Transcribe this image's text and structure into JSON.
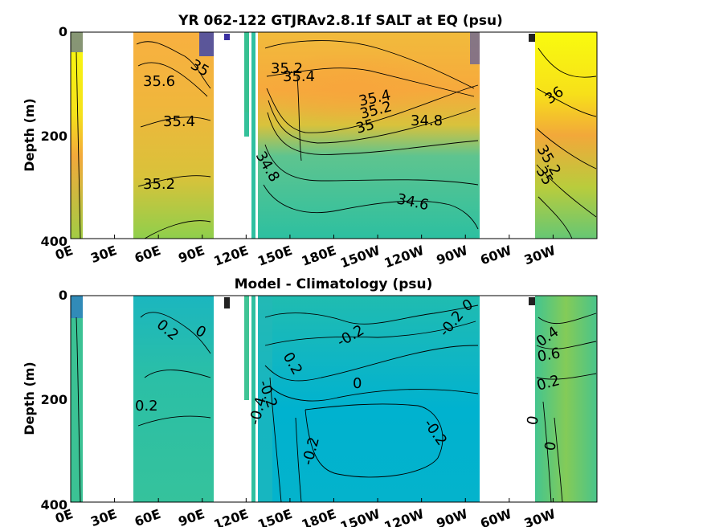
{
  "chart_data": [
    {
      "type": "heatmap",
      "title": "YR 062-122 GTJRAv2.8.1f SALT at EQ (psu)",
      "xlabel": "",
      "ylabel": "Depth (m)",
      "x_ticks": [
        "0E",
        "30E",
        "60E",
        "90E",
        "120E",
        "150E",
        "180E",
        "150W",
        "120W",
        "90W",
        "60W",
        "30W"
      ],
      "y_ticks": [
        "0",
        "200",
        "400"
      ],
      "xlim": [
        0,
        360
      ],
      "ylim": [
        400,
        0
      ],
      "colors": {
        "low": "#2b3fb5",
        "mid_low": "#21b9a8",
        "mid": "#b5cf3a",
        "high": "#f7a93c",
        "max": "#f9fb0e"
      },
      "contour_labels": [
        {
          "text": "35",
          "lon": 50,
          "depth": 55
        },
        {
          "text": "35.6",
          "lon": 40,
          "depth": 95
        },
        {
          "text": "35.4",
          "lon": 50,
          "depth": 170
        },
        {
          "text": "35.2",
          "lon": 40,
          "depth": 290
        },
        {
          "text": "35.2",
          "lon": 142,
          "depth": 60
        },
        {
          "text": "35.4",
          "lon": 147,
          "depth": 85
        },
        {
          "text": "35.4",
          "lon": 207,
          "depth": 130
        },
        {
          "text": "35.2",
          "lon": 207,
          "depth": 150
        },
        {
          "text": "35",
          "lon": 200,
          "depth": 185
        },
        {
          "text": "34.8",
          "lon": 235,
          "depth": 170
        },
        {
          "text": "34.8",
          "lon": 135,
          "depth": 250
        },
        {
          "text": "34.6",
          "lon": 237,
          "depth": 320
        },
        {
          "text": "36",
          "lon": 334,
          "depth": 110
        },
        {
          "text": "35.2",
          "lon": 320,
          "depth": 230
        },
        {
          "text": "35",
          "lon": 315,
          "depth": 270
        }
      ]
    },
    {
      "type": "heatmap",
      "title": "Model - Climatology (psu)",
      "xlabel": "",
      "ylabel": "Depth (m)",
      "x_ticks": [
        "0E",
        "30E",
        "60E",
        "90E",
        "120E",
        "150E",
        "180E",
        "150W",
        "120W",
        "90W",
        "60W",
        "30W"
      ],
      "y_ticks": [
        "0",
        "200",
        "400"
      ],
      "xlim": [
        0,
        360
      ],
      "ylim": [
        400,
        0
      ],
      "colors": {
        "neg": "#00b4cc",
        "zero": "#3ec39a",
        "pos": "#a6cc3f"
      },
      "contour_labels": [
        {
          "text": "0.2",
          "lon": 57,
          "depth": 65
        },
        {
          "text": "0",
          "lon": 82,
          "depth": 65
        },
        {
          "text": "0.2",
          "lon": 52,
          "depth": 210
        },
        {
          "text": "0.2",
          "lon": 140,
          "depth": 125
        },
        {
          "text": "-0.2",
          "lon": 197,
          "depth": 80
        },
        {
          "text": "-0.2",
          "lon": 266,
          "depth": 55
        },
        {
          "text": "0",
          "lon": 271,
          "depth": 20
        },
        {
          "text": "0",
          "lon": 196,
          "depth": 170
        },
        {
          "text": "-0.2",
          "lon": 130,
          "depth": 210
        },
        {
          "text": "-0.4",
          "lon": 133,
          "depth": 270
        },
        {
          "text": "-0.2",
          "lon": 160,
          "depth": 300
        },
        {
          "text": "-0.2",
          "lon": 250,
          "depth": 260
        },
        {
          "text": "0.4",
          "lon": 333,
          "depth": 75
        },
        {
          "text": "0.6",
          "lon": 334,
          "depth": 110
        },
        {
          "text": "0.2",
          "lon": 329,
          "depth": 165
        },
        {
          "text": "0",
          "lon": 325,
          "depth": 240
        },
        {
          "text": "0",
          "lon": 330,
          "depth": 290
        }
      ]
    }
  ]
}
